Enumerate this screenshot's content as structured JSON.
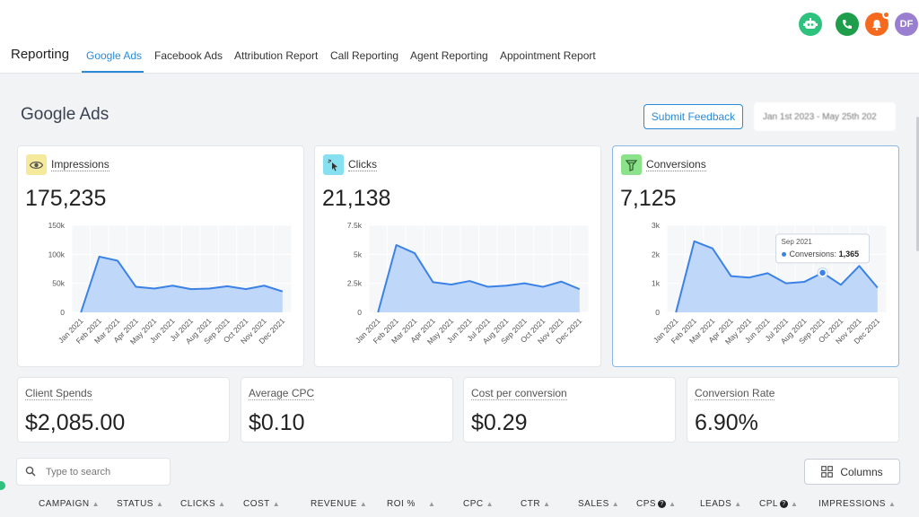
{
  "header": {
    "icons": [
      {
        "name": "robot-icon",
        "color": "#2ec27e"
      },
      {
        "name": "phone-icon",
        "color": "#1e9e4a"
      },
      {
        "name": "bell-icon",
        "color": "#f56a1f"
      }
    ],
    "avatar_initials": "DF"
  },
  "nav": {
    "title": "Reporting",
    "tabs": [
      {
        "label": "Google Ads",
        "active": true
      },
      {
        "label": "Facebook Ads"
      },
      {
        "label": "Attribution Report"
      },
      {
        "label": "Call Reporting"
      },
      {
        "label": "Agent Reporting"
      },
      {
        "label": "Appointment Report"
      }
    ]
  },
  "page": {
    "title": "Google Ads",
    "feedback_label": "Submit Feedback",
    "date_range": "Jan 1st 2023 - May 25th 202"
  },
  "cards": [
    {
      "label": "Impressions",
      "value": "175,235",
      "icon": "eye-icon",
      "icon_bg": "#f5e99b",
      "chart_data": {
        "type": "area",
        "x": [
          "Jan 2021",
          "Feb 2021",
          "Mar 2021",
          "Apr 2021",
          "May 2021",
          "Jun 2021",
          "Jul 2021",
          "Aug 2021",
          "Sep 2021",
          "Oct 2021",
          "Nov 2021",
          "Dec 2021"
        ],
        "values": [
          0,
          96000,
          89000,
          44000,
          41000,
          46000,
          40000,
          41000,
          45000,
          40000,
          46000,
          36000
        ],
        "ylim": [
          0,
          150000
        ],
        "yticks": [
          "0",
          "50k",
          "100k",
          "150k"
        ]
      }
    },
    {
      "label": "Clicks",
      "value": "21,138",
      "icon": "cursor-click-icon",
      "icon_bg": "#86e0f0",
      "chart_data": {
        "type": "area",
        "x": [
          "Jan 2021",
          "Feb 2021",
          "Mar 2021",
          "Apr 2021",
          "May 2021",
          "Jun 2021",
          "Jul 2021",
          "Aug 2021",
          "Sep 2021",
          "Oct 2021",
          "Nov 2021",
          "Dec 2021"
        ],
        "values": [
          0,
          5800,
          5100,
          2600,
          2400,
          2700,
          2200,
          2300,
          2500,
          2200,
          2650,
          2000
        ],
        "ylim": [
          0,
          7500
        ],
        "yticks": [
          "0",
          "2.5k",
          "5k",
          "7.5k"
        ]
      }
    },
    {
      "label": "Conversions",
      "value": "7,125",
      "icon": "funnel-icon",
      "icon_bg": "#8be28b",
      "selected": true,
      "tooltip": {
        "month": "Sep 2021",
        "label": "Conversions:",
        "value": "1,365"
      },
      "chart_data": {
        "type": "area",
        "x": [
          "Jan 2021",
          "Feb 2021",
          "Mar 2021",
          "Apr 2021",
          "May 2021",
          "Jun 2021",
          "Jul 2021",
          "Aug 2021",
          "Sep 2021",
          "Oct 2021",
          "Nov 2021",
          "Dec 2021"
        ],
        "values": [
          0,
          2450,
          2200,
          1250,
          1200,
          1350,
          1000,
          1050,
          1365,
          950,
          1600,
          850
        ],
        "ylim": [
          0,
          3000
        ],
        "yticks": [
          "0",
          "1k",
          "2k",
          "3k"
        ],
        "highlight_index": 8
      }
    }
  ],
  "stats": [
    {
      "label": "Client Spends",
      "value": "$2,085.00"
    },
    {
      "label": "Average CPC",
      "value": "$0.10"
    },
    {
      "label": "Cost per conversion",
      "value": "$0.29"
    },
    {
      "label": "Conversion Rate",
      "value": "6.90%"
    }
  ],
  "search": {
    "placeholder": "Type to search"
  },
  "columns_label": "Columns",
  "table": {
    "headers": [
      {
        "label": "CAMPAIGN",
        "sort": true
      },
      {
        "label": "STATUS",
        "sort": true
      },
      {
        "label": "CLICKS",
        "sort": true
      },
      {
        "label": "COST",
        "sort": true
      },
      {
        "label": "REVENUE",
        "sort": true
      },
      {
        "label": "ROI %",
        "sort": true
      },
      {
        "label": "CPC",
        "sort": true
      },
      {
        "label": "CTR",
        "sort": true
      },
      {
        "label": "SALES",
        "sort": true
      },
      {
        "label": "CPS",
        "info": true,
        "sort": true
      },
      {
        "label": "LEADS",
        "sort": true
      },
      {
        "label": "CPL",
        "info": true,
        "sort": true
      },
      {
        "label": "IMPRESSIONS",
        "sort": true
      }
    ]
  },
  "colors": {
    "accent": "#2b8ad6",
    "chart_line": "#3b82e6",
    "chart_fill": "#b9d3f8"
  }
}
